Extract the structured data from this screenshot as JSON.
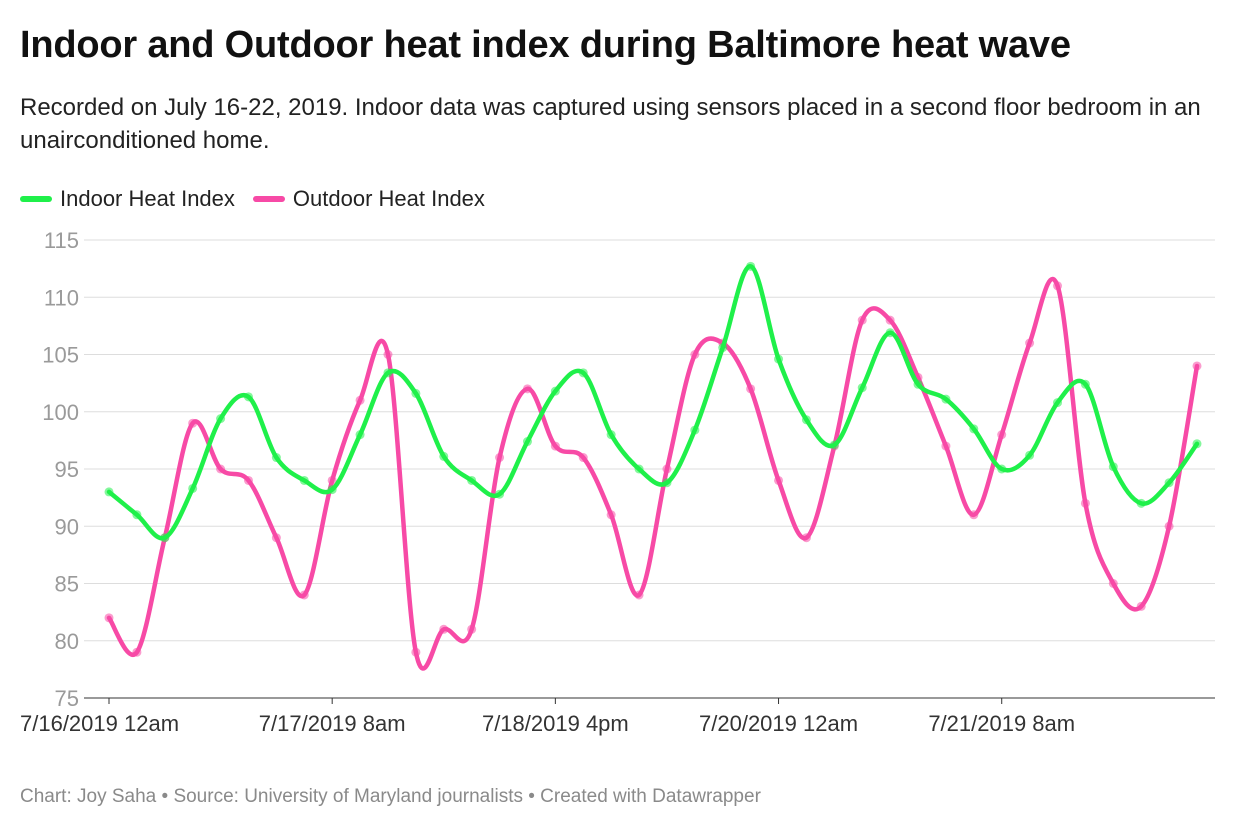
{
  "title": "Indoor and Outdoor heat index during Baltimore heat wave",
  "subtitle": "Recorded on July 16-22, 2019. Indoor data was captured using sensors placed in a second floor bedroom in an unairconditioned home.",
  "footer": "Chart: Joy Saha • Source: University of Maryland journalists • Created with Datawrapper",
  "colors": {
    "indoor": "#1ff04a",
    "outdoor": "#f74aa6",
    "grid": "#dddddd"
  },
  "chart_data": {
    "type": "line",
    "title": "Indoor and Outdoor heat index during Baltimore heat wave",
    "xlabel": "",
    "ylabel": "",
    "ylim": [
      75,
      115
    ],
    "yticks": [
      75,
      80,
      85,
      90,
      95,
      100,
      105,
      110,
      115
    ],
    "x_interval_hours": 4,
    "x": [
      "7/16/2019 12am",
      "7/16/2019 4am",
      "7/16/2019 8am",
      "7/16/2019 12pm",
      "7/16/2019 4pm",
      "7/16/2019 8pm",
      "7/17/2019 12am",
      "7/17/2019 4am",
      "7/17/2019 8am",
      "7/17/2019 12pm",
      "7/17/2019 4pm",
      "7/17/2019 8pm",
      "7/18/2019 12am",
      "7/18/2019 4am",
      "7/18/2019 8am",
      "7/18/2019 12pm",
      "7/18/2019 4pm",
      "7/18/2019 8pm",
      "7/19/2019 12am",
      "7/19/2019 4am",
      "7/19/2019 8am",
      "7/19/2019 12pm",
      "7/19/2019 4pm",
      "7/19/2019 8pm",
      "7/20/2019 12am",
      "7/20/2019 4am",
      "7/20/2019 8am",
      "7/20/2019 12pm",
      "7/20/2019 4pm",
      "7/20/2019 8pm",
      "7/21/2019 12am",
      "7/21/2019 4am",
      "7/21/2019 8am",
      "7/21/2019 12pm",
      "7/21/2019 4pm",
      "7/21/2019 8pm",
      "7/22/2019 12am",
      "7/22/2019 4am",
      "7/22/2019 8am",
      "7/22/2019 12pm"
    ],
    "x_tick_labels": [
      "7/16/2019 12am",
      "7/17/2019 8am",
      "7/18/2019 4pm",
      "7/20/2019 12am",
      "7/21/2019 8am"
    ],
    "x_tick_indices": [
      0,
      8,
      16,
      24,
      32
    ],
    "series": [
      {
        "name": "Indoor Heat Index",
        "color": "#1ff04a",
        "values": [
          93,
          91,
          89,
          93.3,
          99.4,
          101.3,
          96,
          94,
          93.2,
          98,
          103.4,
          101.6,
          96.1,
          94,
          92.8,
          97.4,
          101.8,
          103.4,
          98,
          95,
          93.8,
          98.4,
          105.6,
          112.7,
          104.6,
          99.3,
          97.1,
          102.1,
          106.9,
          102.4,
          101.1,
          98.5,
          95,
          96.2,
          100.8,
          102.4,
          95.2,
          92,
          93.8,
          97.2
        ]
      },
      {
        "name": "Outdoor Heat Index",
        "color": "#f74aa6",
        "values": [
          82,
          79,
          89,
          99,
          95,
          94,
          89,
          84,
          94,
          101,
          105,
          79,
          81,
          81,
          96,
          102,
          97,
          96,
          91,
          84,
          95,
          105,
          106,
          102,
          94,
          89,
          97,
          108,
          108,
          103,
          97,
          91,
          98,
          106,
          111,
          92,
          85,
          83,
          90,
          104
        ]
      }
    ]
  }
}
